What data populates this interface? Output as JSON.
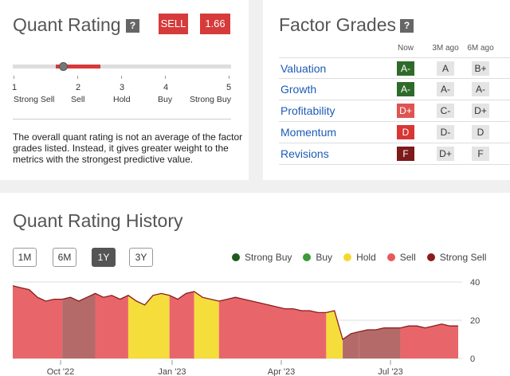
{
  "quant": {
    "title": "Quant Rating",
    "help": "?",
    "rating_label": "SELL",
    "rating_value": "1.66",
    "rating_numeric": 1.66,
    "scale": [
      {
        "num": "1",
        "label": "Strong Sell"
      },
      {
        "num": "2",
        "label": "Sell"
      },
      {
        "num": "3",
        "label": "Hold"
      },
      {
        "num": "4",
        "label": "Buy"
      },
      {
        "num": "5",
        "label": "Strong Buy"
      }
    ],
    "note": "The overall quant rating is not an average of the factor grades listed. Instead, it gives greater weight to the metrics with the strongest predictive value."
  },
  "factor": {
    "title": "Factor Grades",
    "help": "?",
    "headers": {
      "now": "Now",
      "m3": "3M ago",
      "m6": "6M ago"
    },
    "rows": [
      {
        "name": "Valuation",
        "now": "A-",
        "m3": "A",
        "m6": "B+",
        "now_color": "#2e6b2b"
      },
      {
        "name": "Growth",
        "now": "A-",
        "m3": "A-",
        "m6": "A-",
        "now_color": "#2e6b2b"
      },
      {
        "name": "Profitability",
        "now": "D+",
        "m3": "C-",
        "m6": "D+",
        "now_color": "#e05353"
      },
      {
        "name": "Momentum",
        "now": "D",
        "m3": "D-",
        "m6": "D",
        "now_color": "#d93535"
      },
      {
        "name": "Revisions",
        "now": "F",
        "m3": "D+",
        "m6": "F",
        "now_color": "#7d1a1a"
      }
    ]
  },
  "history": {
    "title": "Quant Rating History",
    "periods": [
      "1M",
      "6M",
      "1Y",
      "3Y"
    ],
    "active_period": "1Y",
    "legend": [
      {
        "label": "Strong Buy",
        "color": "#1e5a1c"
      },
      {
        "label": "Buy",
        "color": "#3d9a3a"
      },
      {
        "label": "Hold",
        "color": "#f2d930"
      },
      {
        "label": "Sell",
        "color": "#e8585a"
      },
      {
        "label": "Strong Sell",
        "color": "#8a1c1c"
      }
    ]
  },
  "chart_data": {
    "type": "area",
    "x_labels": [
      "Oct '22",
      "Jan '23",
      "Apr '23",
      "Jul '23"
    ],
    "y_ticks": [
      0,
      20,
      40
    ],
    "ylim": [
      0,
      40
    ],
    "points": [
      38,
      37,
      36,
      32,
      30,
      31,
      31,
      32,
      30,
      32,
      34,
      32,
      33,
      31,
      33,
      30,
      28,
      33,
      34,
      33,
      31,
      34,
      35,
      32,
      31,
      30,
      31,
      32,
      31,
      30,
      29,
      28,
      27,
      26,
      26,
      25,
      25,
      24,
      24,
      25,
      10,
      13,
      14,
      15,
      15,
      16,
      16,
      16,
      17,
      17,
      16,
      17,
      18,
      17,
      17
    ],
    "segments": [
      {
        "from": 0,
        "to": 6,
        "rating": "Sell"
      },
      {
        "from": 6,
        "to": 10,
        "rating": "Strong Sell"
      },
      {
        "from": 10,
        "to": 14,
        "rating": "Sell"
      },
      {
        "from": 14,
        "to": 19,
        "rating": "Hold"
      },
      {
        "from": 19,
        "to": 22,
        "rating": "Sell"
      },
      {
        "from": 22,
        "to": 25,
        "rating": "Hold"
      },
      {
        "from": 25,
        "to": 38,
        "rating": "Sell"
      },
      {
        "from": 38,
        "to": 40,
        "rating": "Hold"
      },
      {
        "from": 40,
        "to": 42,
        "rating": "Strong Sell"
      },
      {
        "from": 42,
        "to": 47,
        "rating": "Strong Sell"
      },
      {
        "from": 47,
        "to": 54,
        "rating": "Sell"
      }
    ]
  }
}
